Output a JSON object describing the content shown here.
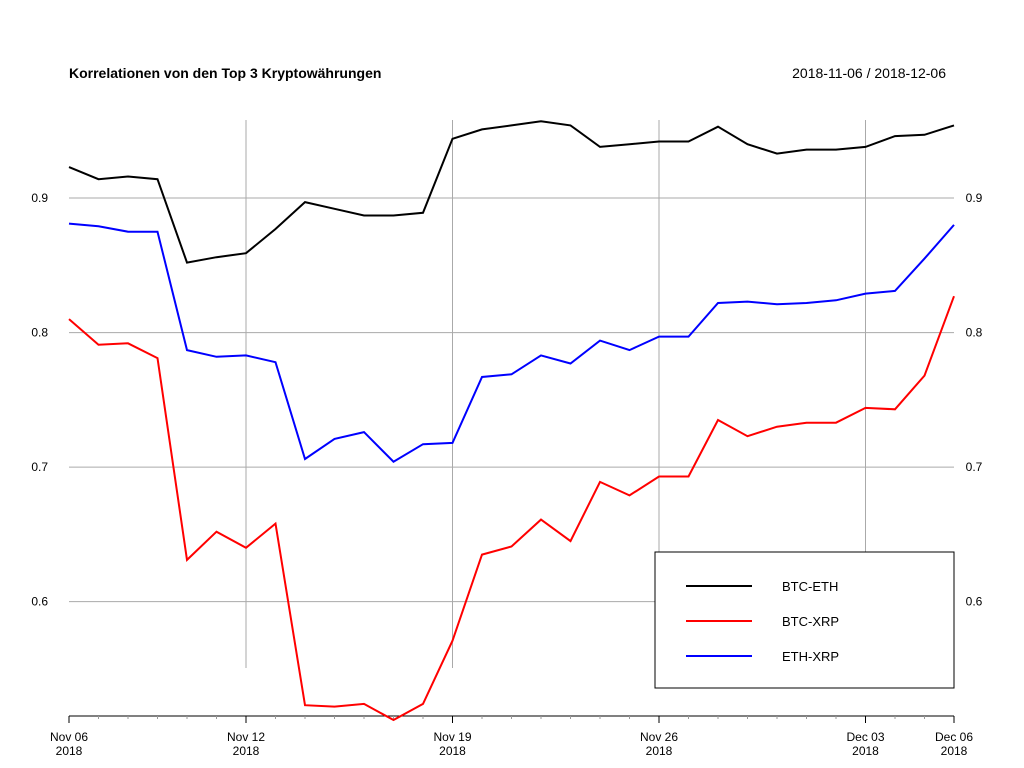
{
  "chart_data": {
    "type": "line",
    "title": "Korrelationen von den Top 3 Kryptowährungen",
    "date_range": "2018-11-06 / 2018-12-06",
    "xlabel": "",
    "ylabel": "",
    "x": [
      "2018-11-06",
      "2018-11-07",
      "2018-11-08",
      "2018-11-09",
      "2018-11-10",
      "2018-11-11",
      "2018-11-12",
      "2018-11-13",
      "2018-11-14",
      "2018-11-15",
      "2018-11-16",
      "2018-11-17",
      "2018-11-18",
      "2018-11-19",
      "2018-11-20",
      "2018-11-21",
      "2018-11-22",
      "2018-11-23",
      "2018-11-24",
      "2018-11-25",
      "2018-11-26",
      "2018-11-27",
      "2018-11-28",
      "2018-11-29",
      "2018-11-30",
      "2018-12-01",
      "2018-12-02",
      "2018-12-03",
      "2018-12-04",
      "2018-12-05",
      "2018-12-06"
    ],
    "x_ticks": [
      {
        "date": "2018-11-06",
        "line1": "Nov 06",
        "line2": "2018",
        "grid": false
      },
      {
        "date": "2018-11-12",
        "line1": "Nov 12",
        "line2": "2018",
        "grid": true
      },
      {
        "date": "2018-11-19",
        "line1": "Nov 19",
        "line2": "2018",
        "grid": true
      },
      {
        "date": "2018-11-26",
        "line1": "Nov 26",
        "line2": "2018",
        "grid": true
      },
      {
        "date": "2018-12-03",
        "line1": "Dec 03",
        "line2": "2018",
        "grid": true
      },
      {
        "date": "2018-12-06",
        "line1": "Dec 06",
        "line2": "2018",
        "grid": false
      }
    ],
    "y_ticks": [
      "0.6",
      "0.7",
      "0.8",
      "0.9"
    ],
    "ylim": [
      0.515,
      0.958
    ],
    "grid": true,
    "legend_position": "bottom-right",
    "series": [
      {
        "name": "BTC-ETH",
        "color": "#000000",
        "values": [
          0.923,
          0.914,
          0.916,
          0.914,
          0.852,
          0.856,
          0.859,
          0.877,
          0.897,
          0.892,
          0.887,
          0.887,
          0.889,
          0.944,
          0.951,
          0.954,
          0.957,
          0.954,
          0.938,
          0.94,
          0.942,
          0.942,
          0.953,
          0.94,
          0.933,
          0.936,
          0.936,
          0.938,
          0.946,
          0.947,
          0.954
        ]
      },
      {
        "name": "BTC-XRP",
        "color": "#ff0000",
        "values": [
          0.81,
          0.791,
          0.792,
          0.781,
          0.631,
          0.652,
          0.64,
          0.658,
          0.523,
          0.522,
          0.524,
          0.512,
          0.524,
          0.571,
          0.635,
          0.641,
          0.661,
          0.645,
          0.689,
          0.679,
          0.693,
          0.693,
          0.735,
          0.723,
          0.73,
          0.733,
          0.733,
          0.744,
          0.743,
          0.768,
          0.827
        ]
      },
      {
        "name": "ETH-XRP",
        "color": "#0000ff",
        "values": [
          0.881,
          0.879,
          0.875,
          0.875,
          0.787,
          0.782,
          0.783,
          0.778,
          0.706,
          0.721,
          0.726,
          0.704,
          0.717,
          0.718,
          0.767,
          0.769,
          0.783,
          0.777,
          0.794,
          0.787,
          0.797,
          0.797,
          0.822,
          0.823,
          0.821,
          0.822,
          0.824,
          0.829,
          0.831,
          0.855,
          0.88
        ]
      }
    ]
  }
}
